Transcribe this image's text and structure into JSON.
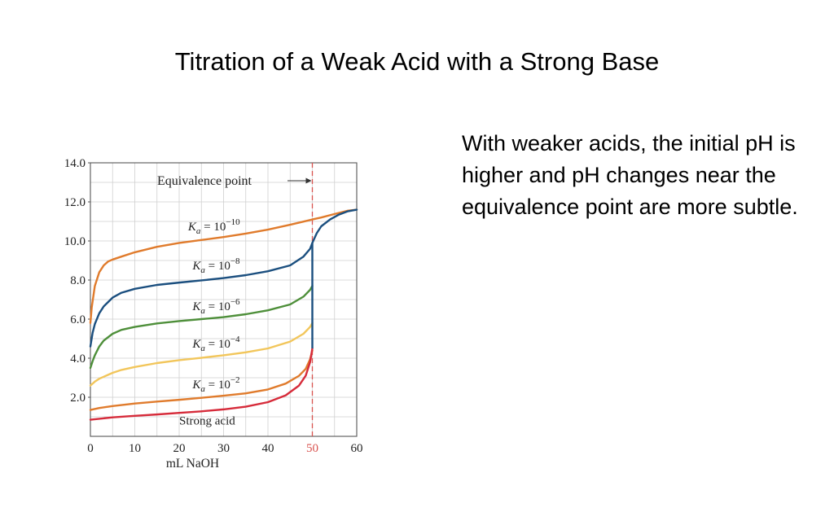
{
  "slide": {
    "title": "Titration of a Weak Acid with a Strong Base",
    "body_text": "With weaker acids, the initial pH is higher and pH changes near the equivalence point are more subtle."
  },
  "chart_data": {
    "type": "line",
    "title": "",
    "xlabel": "mL NaOH",
    "ylabel": "",
    "xlim": [
      0,
      60
    ],
    "ylim": [
      0,
      14
    ],
    "x_ticks": [
      "0",
      "10",
      "20",
      "30",
      "40",
      "50",
      "60"
    ],
    "y_ticks": [
      "2.0",
      "4.0",
      "6.0",
      "8.0",
      "10.0",
      "12.0",
      "14.0"
    ],
    "highlight_tick": "50",
    "grid": true,
    "annotation": {
      "text": "Equivalence point",
      "x": 50,
      "color": "#d9534f"
    },
    "series": [
      {
        "name": "K_a = 10^-10",
        "label_base": "K",
        "label_sub": "a",
        "label_eq": " = 10",
        "label_exp": "−10",
        "label_x": 22,
        "label_y": 10.55,
        "color": "#e07b2c",
        "x": [
          0,
          0.3,
          1,
          2,
          3,
          4,
          5,
          7,
          10,
          15,
          20,
          25,
          30,
          35,
          40,
          45,
          50,
          52,
          55,
          58,
          60
        ],
        "y": [
          5.8,
          6.6,
          7.7,
          8.4,
          8.75,
          8.95,
          9.05,
          9.2,
          9.42,
          9.7,
          9.9,
          10.05,
          10.2,
          10.38,
          10.58,
          10.83,
          11.1,
          11.2,
          11.38,
          11.55,
          11.6
        ]
      },
      {
        "name": "K_a = 10^-8",
        "label_base": "K",
        "label_sub": "a",
        "label_eq": " = 10",
        "label_exp": "−8",
        "label_x": 23,
        "label_y": 8.55,
        "color": "#1b4f7f",
        "x": [
          0,
          0.5,
          1,
          2,
          3,
          5,
          7,
          10,
          15,
          20,
          25,
          30,
          35,
          40,
          45,
          48,
          49.5,
          50,
          51,
          52,
          54,
          56,
          58,
          60
        ],
        "y": [
          4.6,
          5.3,
          5.75,
          6.3,
          6.65,
          7.1,
          7.35,
          7.55,
          7.75,
          7.87,
          7.98,
          8.1,
          8.25,
          8.45,
          8.75,
          9.2,
          9.6,
          9.9,
          10.4,
          10.75,
          11.1,
          11.35,
          11.52,
          11.6
        ]
      },
      {
        "name": "K_a = 10^-6",
        "label_base": "K",
        "label_sub": "a",
        "label_eq": " = 10",
        "label_exp": "−6",
        "label_x": 23,
        "label_y": 6.45,
        "color": "#4e8f3a",
        "x": [
          0,
          0.5,
          1,
          2,
          3,
          5,
          7,
          10,
          15,
          20,
          25,
          30,
          35,
          40,
          45,
          48,
          49.5,
          50
        ],
        "y": [
          3.5,
          3.85,
          4.15,
          4.6,
          4.9,
          5.25,
          5.45,
          5.6,
          5.78,
          5.9,
          6.0,
          6.1,
          6.25,
          6.45,
          6.75,
          7.15,
          7.5,
          7.7
        ]
      },
      {
        "name": "K_a = 10^-4",
        "label_base": "K",
        "label_sub": "a",
        "label_eq": " = 10",
        "label_exp": "−4",
        "label_x": 23,
        "label_y": 4.55,
        "color": "#f2c65b",
        "x": [
          0,
          1,
          2,
          3,
          5,
          7,
          10,
          15,
          20,
          25,
          30,
          35,
          40,
          45,
          48,
          49.5,
          50
        ],
        "y": [
          2.6,
          2.8,
          2.95,
          3.05,
          3.25,
          3.4,
          3.55,
          3.75,
          3.9,
          4.02,
          4.15,
          4.3,
          4.5,
          4.85,
          5.25,
          5.6,
          5.8
        ]
      },
      {
        "name": "K_a = 10^-2",
        "label_base": "K",
        "label_sub": "a",
        "label_eq": " = 10",
        "label_exp": "−2",
        "label_x": 23,
        "label_y": 2.45,
        "color": "#e07b2c",
        "x": [
          0,
          2,
          5,
          10,
          15,
          20,
          25,
          30,
          35,
          40,
          44,
          47,
          48.5,
          49.5,
          50
        ],
        "y": [
          1.35,
          1.45,
          1.55,
          1.68,
          1.78,
          1.87,
          1.97,
          2.08,
          2.2,
          2.4,
          2.7,
          3.1,
          3.45,
          3.95,
          4.4
        ]
      },
      {
        "name": "Strong acid",
        "label_text": "Strong acid",
        "label_x": 20,
        "label_y": 0.6,
        "color": "#d62b3a",
        "x": [
          0,
          2,
          5,
          10,
          15,
          20,
          25,
          30,
          35,
          40,
          44,
          47,
          48.5,
          49.5,
          50
        ],
        "y": [
          0.85,
          0.9,
          0.97,
          1.05,
          1.12,
          1.2,
          1.28,
          1.38,
          1.52,
          1.75,
          2.1,
          2.6,
          3.1,
          3.8,
          4.5
        ]
      }
    ]
  }
}
